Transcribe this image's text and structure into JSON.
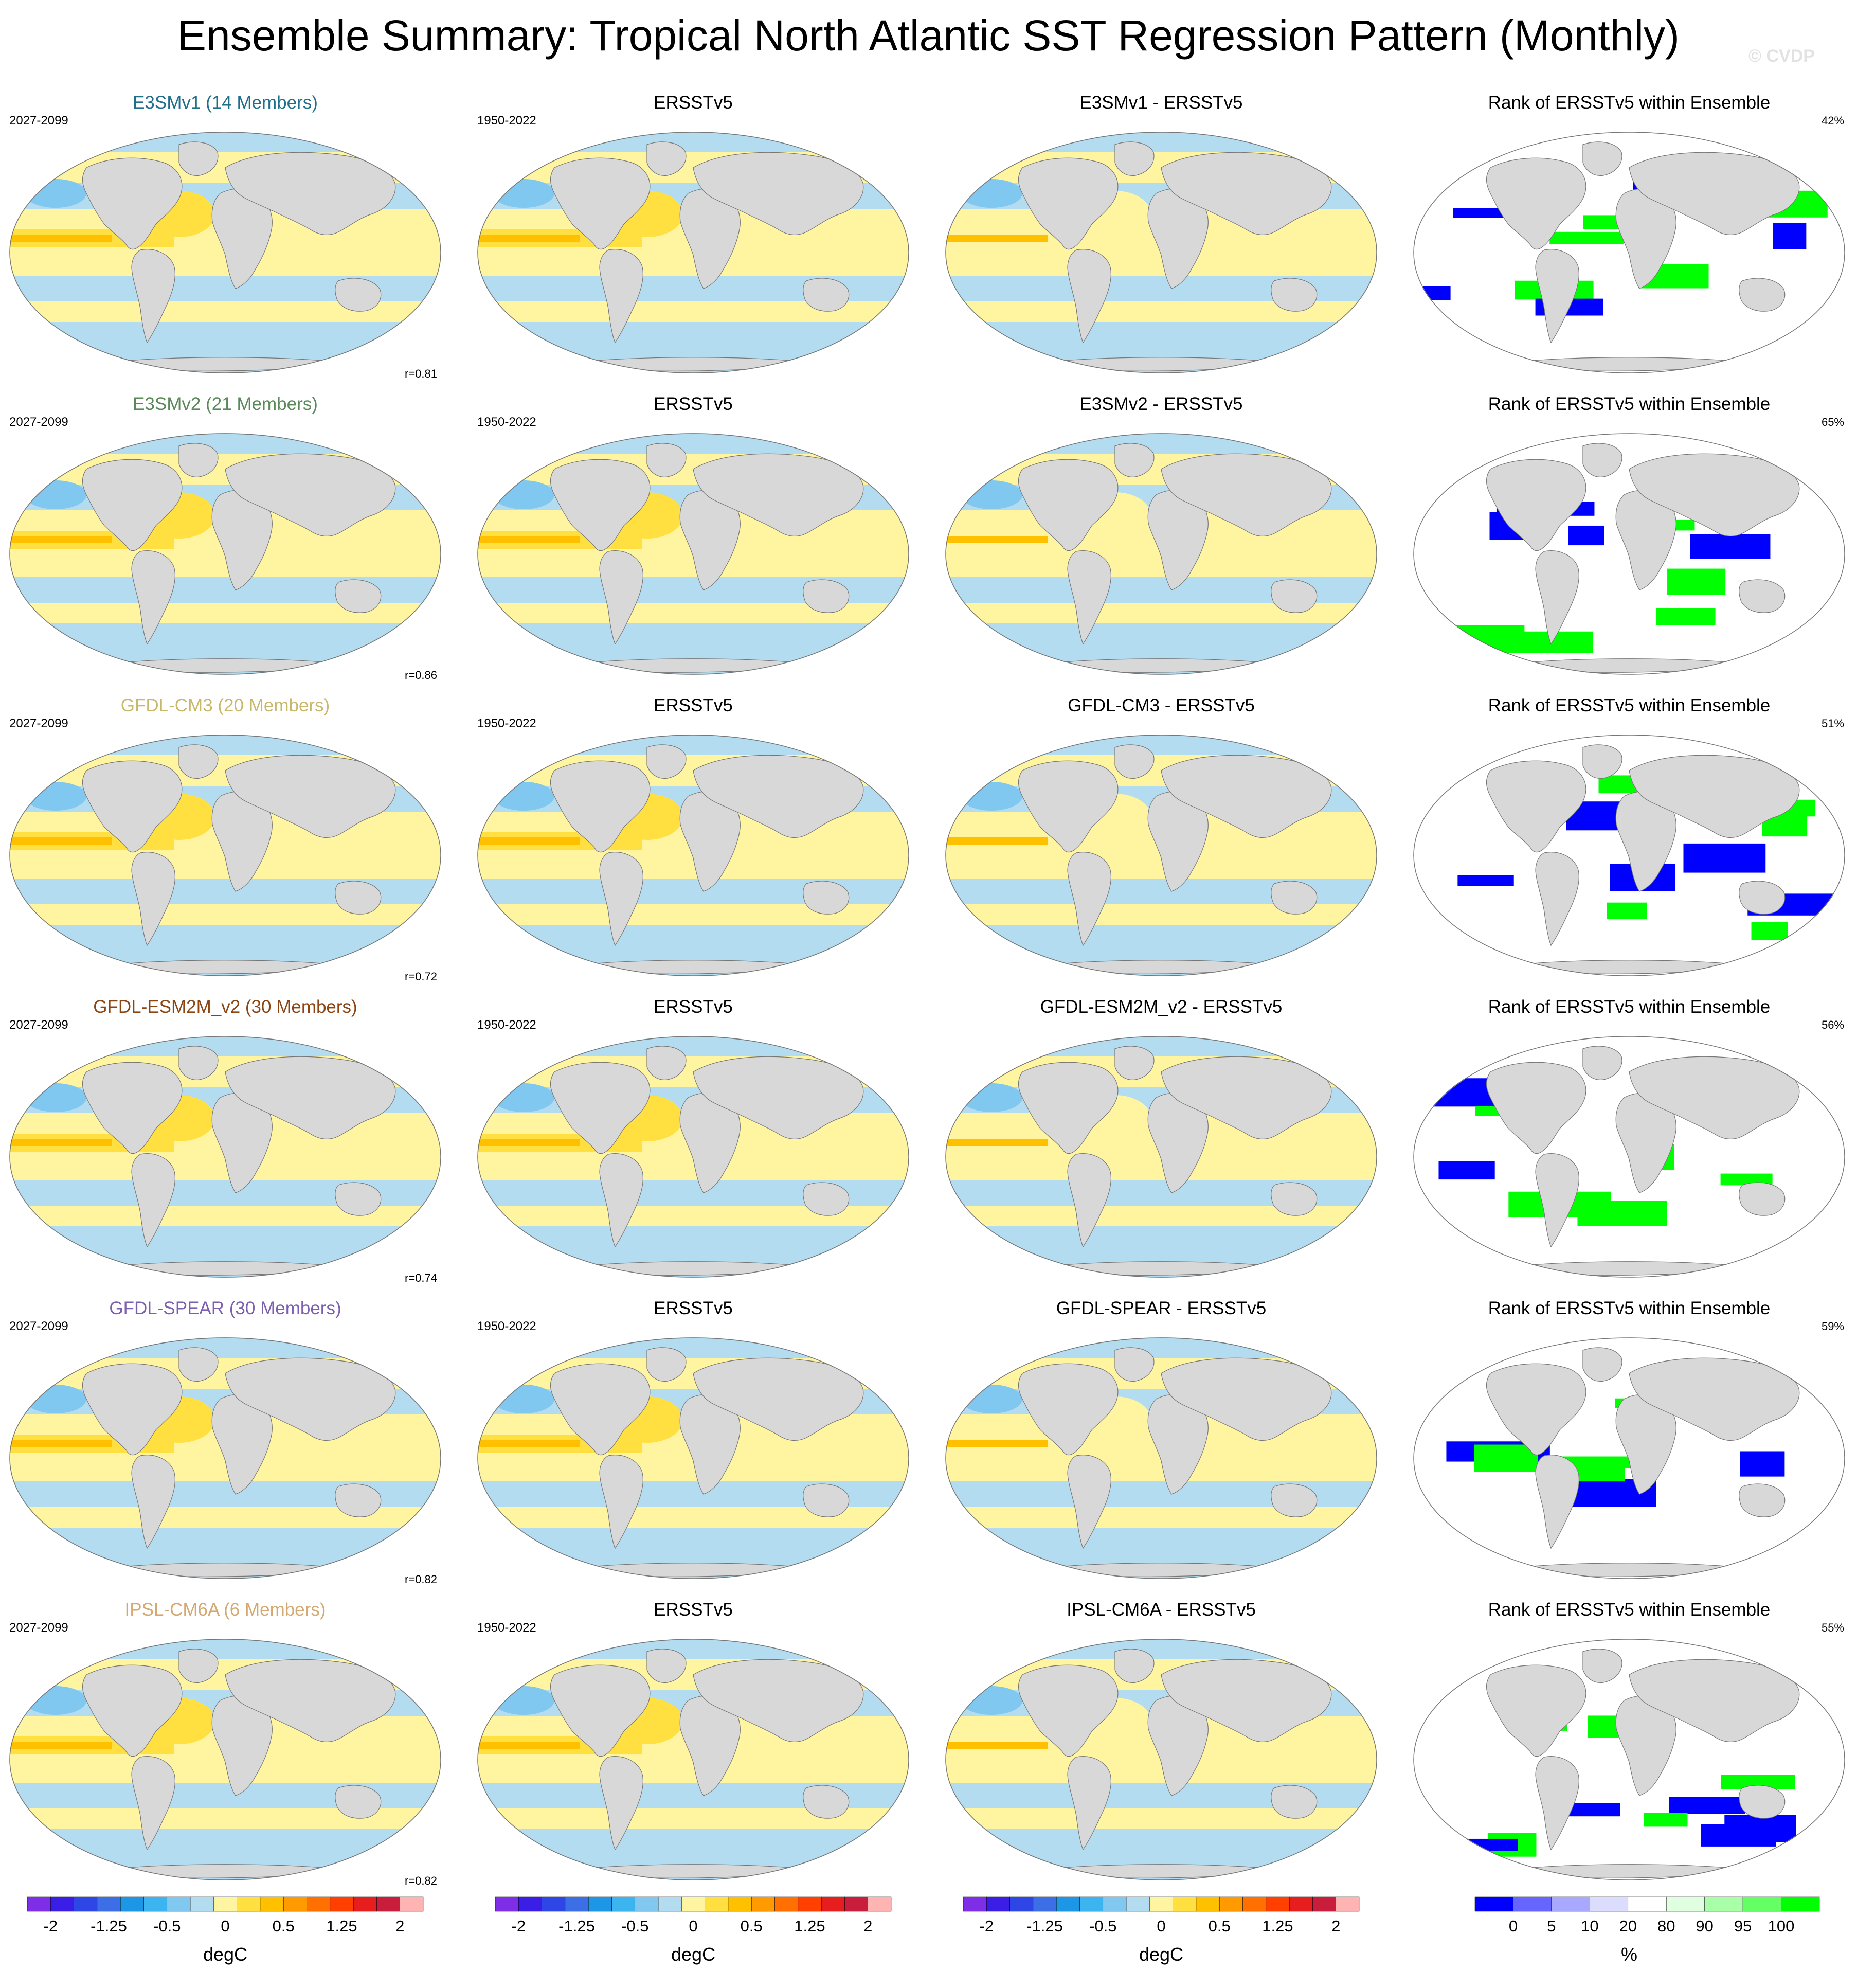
{
  "title": "Ensemble Summary: Tropical North Atlantic SST Regression Pattern (Monthly)",
  "watermark": "© CVDP",
  "obs_name": "ERSSTv5",
  "obs_period": "1950-2022",
  "model_period": "2027-2099",
  "rank_title": "Rank of ERSSTv5 within Ensemble",
  "rows": [
    {
      "model_title": "E3SMv1 (14 Members)",
      "model_color": "#1f6f8b",
      "diff_title": "E3SMv1 - ERSSTv5",
      "corr": "r=0.81",
      "rank_pct": "42%"
    },
    {
      "model_title": "E3SMv2 (21 Members)",
      "model_color": "#5a8a5a",
      "diff_title": "E3SMv2 - ERSSTv5",
      "corr": "r=0.86",
      "rank_pct": "65%"
    },
    {
      "model_title": "GFDL-CM3 (20 Members)",
      "model_color": "#c8b86a",
      "diff_title": "GFDL-CM3 - ERSSTv5",
      "corr": "r=0.72",
      "rank_pct": "51%"
    },
    {
      "model_title": "GFDL-ESM2M_v2 (30 Members)",
      "model_color": "#8b4513",
      "diff_title": "GFDL-ESM2M_v2 - ERSSTv5",
      "corr": "r=0.74",
      "rank_pct": "56%"
    },
    {
      "model_title": "GFDL-SPEAR (30 Members)",
      "model_color": "#7b5fb0",
      "diff_title": "GFDL-SPEAR - ERSSTv5",
      "corr": "r=0.82",
      "rank_pct": "59%"
    },
    {
      "model_title": "IPSL-CM6A (6 Members)",
      "model_color": "#d4a870",
      "diff_title": "IPSL-CM6A - ERSSTv5",
      "corr": "r=0.82",
      "rank_pct": "55%"
    }
  ],
  "sst_colorbar": {
    "unit": "degC",
    "ticks": [
      "-2",
      "-1.25",
      "-0.5",
      "0",
      "0.5",
      "1.25",
      "2"
    ],
    "colors": [
      "#7d2ee6",
      "#3a1ee6",
      "#2f46e6",
      "#3c6fe6",
      "#1e96e6",
      "#3cb4f0",
      "#80c8f0",
      "#b4dcf0",
      "#fff4a0",
      "#ffe040",
      "#ffc000",
      "#ff9a00",
      "#ff7000",
      "#ff4000",
      "#e61e1e",
      "#c81e3c",
      "#ffb4b4"
    ]
  },
  "rank_colorbar": {
    "unit": "%",
    "ticks": [
      "0",
      "5",
      "10",
      "20",
      "80",
      "90",
      "95",
      "100"
    ],
    "colors": [
      "#0000ff",
      "#6666ff",
      "#a8a8ff",
      "#dcdcff",
      "#ffffff",
      "#e0ffe0",
      "#a8ffa8",
      "#64ff64",
      "#00ff00"
    ]
  },
  "map_colors": {
    "ocean_pos_light": "#fff4a0",
    "ocean_pos_mid": "#ffe040",
    "ocean_pos_strong": "#ffc000",
    "ocean_neg_light": "#b4dcf0",
    "ocean_neg_mid": "#80c8f0",
    "land": "#d8d8d8",
    "rank_low": "#0000ff",
    "rank_high": "#00ff00"
  }
}
